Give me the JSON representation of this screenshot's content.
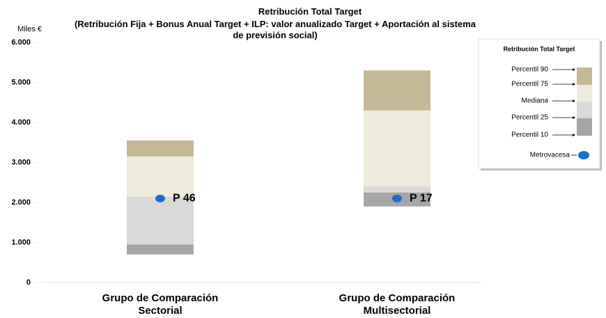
{
  "chart_data": {
    "type": "percentile_band",
    "title": "Retribución Total Target",
    "subtitle": "(Retribución Fija + Bonus Anual Target + ILP: valor anualizado Target + Aportación al sistema de previsión social)",
    "y_label": "Miles €",
    "categories": [
      "Grupo de Comparación Sectorial",
      "Grupo de Comparación Multisectorial"
    ],
    "series": [
      {
        "name": "Percentil 10",
        "values": [
          700,
          1900
        ]
      },
      {
        "name": "Percentil 25",
        "color": "#a6a6a6",
        "values": [
          950,
          2250
        ]
      },
      {
        "name": "Mediana",
        "color": "#d9d9d9",
        "values": [
          2150,
          2400
        ]
      },
      {
        "name": "Percentil 75",
        "color": "#eeebdc",
        "values": [
          3150,
          4300
        ]
      },
      {
        "name": "Percentil 90",
        "color": "#c4b994",
        "values": [
          3550,
          5300
        ]
      }
    ],
    "point_series": {
      "name": "Metrovacesa",
      "color": "#1a6fc9",
      "values": [
        2100,
        2100
      ],
      "labels": [
        "P 46",
        "P 17"
      ]
    },
    "legend_title": "Retribución Total Target",
    "ylim": [
      0,
      6000
    ],
    "yticks": [
      0,
      {
        "value": 1000,
        "label": "1.000"
      },
      {
        "value": 2000,
        "label": "2.000"
      },
      {
        "value": 3000,
        "label": "3.000"
      },
      {
        "value": 4000,
        "label": "4.000"
      },
      {
        "value": 5000,
        "label": "5.000"
      },
      {
        "value": 6000,
        "label": "6.000"
      }
    ]
  }
}
